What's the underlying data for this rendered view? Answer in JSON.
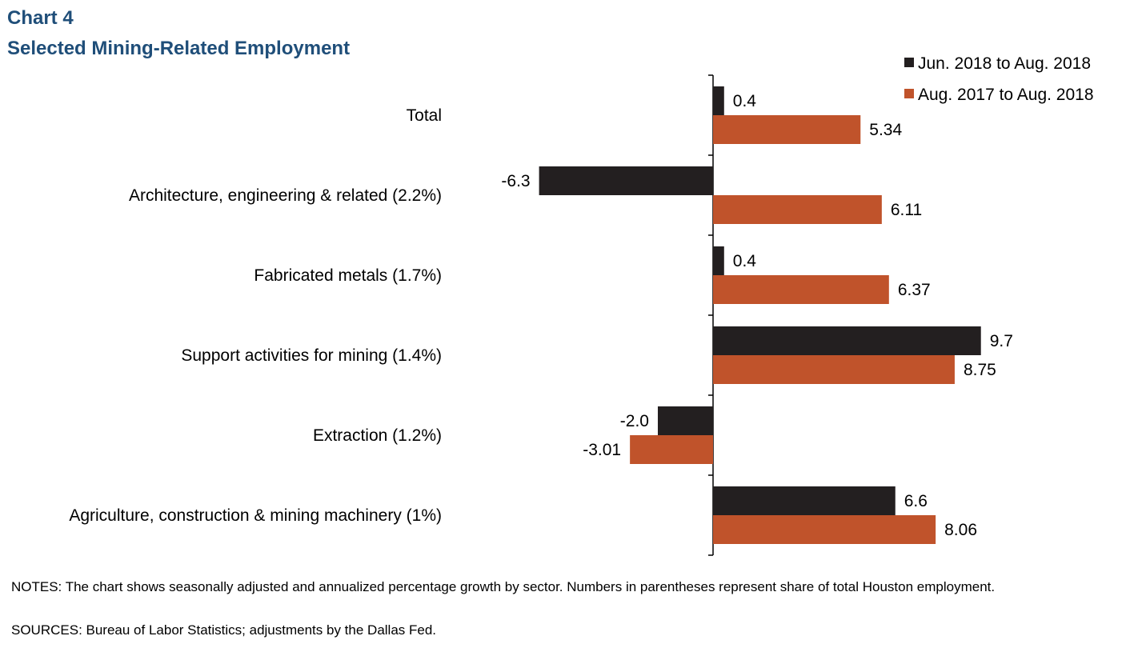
{
  "chart_number": "Chart 4",
  "title": "Selected Mining-Related Employment",
  "notes": "NOTES: The chart shows seasonally adjusted and annualized  percentage growth by sector. Numbers in parentheses represent share of total Houston employment.",
  "sources": "SOURCES: Bureau of Labor Statistics; adjustments by the Dallas Fed.",
  "chart_data": {
    "type": "bar",
    "orientation": "horizontal",
    "title": "Selected Mining-Related Employment",
    "categories": [
      "Total",
      "Architecture, engineering & related (2.2%)",
      "Fabricated metals (1.7%)",
      "Support activities for mining (1.4%)",
      "Extraction (1.2%)",
      "Agriculture, construction & mining machinery (1%)"
    ],
    "series": [
      {
        "name": "Jun. 2018 to Aug. 2018",
        "color": "#231f20",
        "values": [
          0.4,
          -6.3,
          0.4,
          9.7,
          -2.0,
          6.6
        ],
        "labels": [
          "0.4",
          "-6.3",
          "0.4",
          "9.7",
          "-2.0",
          "6.6"
        ]
      },
      {
        "name": "Aug. 2017 to Aug. 2018",
        "color": "#c0532b",
        "values": [
          5.34,
          6.11,
          6.37,
          8.75,
          -3.01,
          8.06
        ],
        "labels": [
          "5.34",
          "6.11",
          "6.37",
          "8.75",
          "-3.01",
          "8.06"
        ]
      }
    ],
    "xlim": [
      -10.1,
      16.3
    ],
    "grid": false,
    "legend_position": "top-right"
  }
}
